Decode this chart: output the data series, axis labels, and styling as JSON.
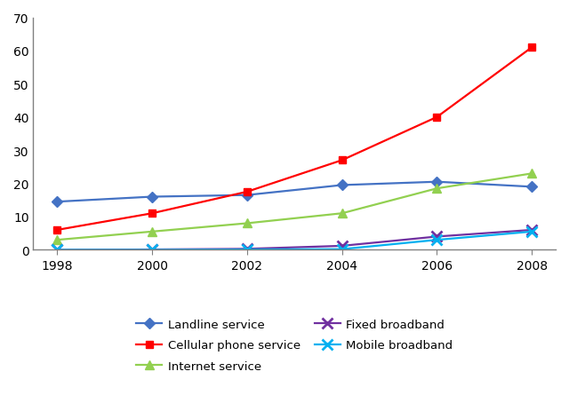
{
  "years": [
    1998,
    2000,
    2002,
    2004,
    2006,
    2008
  ],
  "series": [
    {
      "label": "Landline service",
      "values": [
        14.5,
        16.0,
        16.5,
        19.5,
        20.5,
        19.0
      ],
      "color": "#4472C4",
      "marker": "D",
      "markersize": 6
    },
    {
      "label": "Cellular phone service",
      "values": [
        6.0,
        11.0,
        17.5,
        27.0,
        40.0,
        61.0
      ],
      "color": "#FF0000",
      "marker": "s",
      "markersize": 6
    },
    {
      "label": "Internet service",
      "values": [
        3.0,
        5.5,
        8.0,
        11.0,
        18.5,
        23.0
      ],
      "color": "#92D050",
      "marker": "^",
      "markersize": 7
    },
    {
      "label": "Fixed broadband",
      "values": [
        0.0,
        0.1,
        0.3,
        1.2,
        4.0,
        6.0
      ],
      "color": "#7030A0",
      "marker": "x",
      "markersize": 8,
      "markeredgewidth": 2.0
    },
    {
      "label": "Mobile broadband",
      "values": [
        0.0,
        0.0,
        0.1,
        0.2,
        3.0,
        5.5
      ],
      "color": "#00B0F0",
      "marker": "x",
      "markersize": 8,
      "markeredgewidth": 2.0
    }
  ],
  "ylim": [
    0,
    70
  ],
  "yticks": [
    0,
    10,
    20,
    30,
    40,
    50,
    60,
    70
  ],
  "xticks": [
    1998,
    2000,
    2002,
    2004,
    2006,
    2008
  ],
  "background_color": "#FFFFFF",
  "linewidth": 1.6,
  "tick_fontsize": 10,
  "legend_fontsize": 9.5,
  "border_color": "#808080"
}
